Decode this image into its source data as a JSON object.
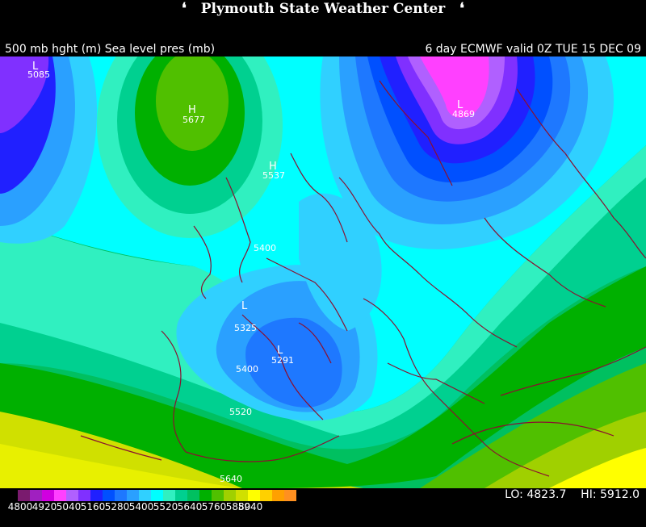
{
  "header": {
    "title": "Plymouth State Weather Center",
    "left_caption": "500 mb hght (m) Sea level pres (mb)",
    "right_caption": "6 day ECMWF valid 0Z TUE 15 DEC 09"
  },
  "stats": {
    "lo_label": "LO:",
    "lo_value": "4823.7",
    "hi_label": "HI:",
    "hi_value": "5912.0"
  },
  "legend": {
    "labels": [
      "4800",
      "4920",
      "5040",
      "5160",
      "5280",
      "5400",
      "5520",
      "5640",
      "5760",
      "5880",
      "5940"
    ],
    "colors": [
      "#7a1b6e",
      "#a020c0",
      "#d000e0",
      "#ff40ff",
      "#b060ff",
      "#8030ff",
      "#2020ff",
      "#0050ff",
      "#1e78ff",
      "#2aa0ff",
      "#30d0ff",
      "#00ffff",
      "#30f0c0",
      "#00d090",
      "#00c060",
      "#00b000",
      "#50c000",
      "#a0d000",
      "#d0e000",
      "#ffff00",
      "#ffd000",
      "#ffa000",
      "#ff9020"
    ]
  },
  "map_labels": {
    "high_center": "H",
    "low_center": "L",
    "centers": [
      {
        "type": "L",
        "value": "5085"
      },
      {
        "type": "H",
        "value": "5677"
      },
      {
        "type": "H",
        "value": "5537"
      },
      {
        "type": "L",
        "value": "4869"
      },
      {
        "type": "L",
        "value": "5325"
      },
      {
        "type": "L",
        "value": "5291"
      }
    ],
    "contours": [
      "5400",
      "5400",
      "5520",
      "5640"
    ]
  }
}
